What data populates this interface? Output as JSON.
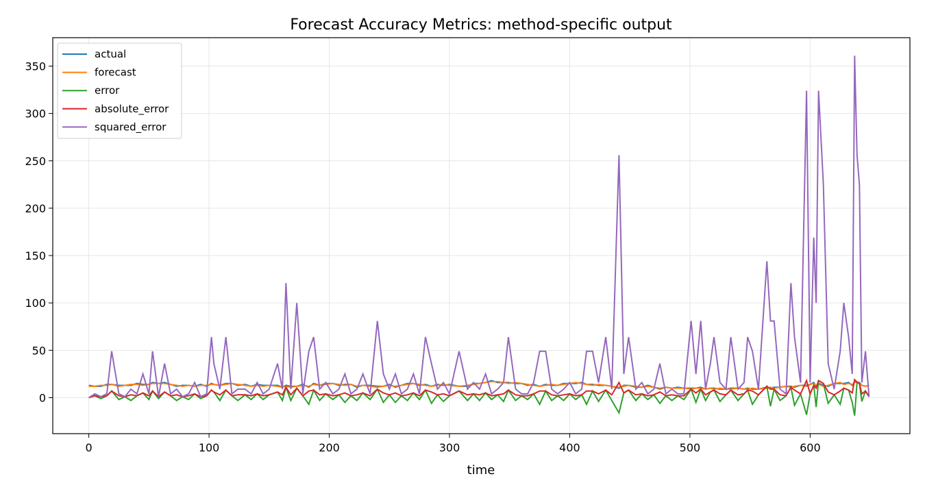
{
  "chart_data": {
    "type": "line",
    "title": "Forecast Accuracy Metrics: method-specific output",
    "x_label": "time",
    "x": [
      0,
      5,
      10,
      15,
      19,
      25,
      30,
      35,
      40,
      45,
      50,
      53,
      58,
      63,
      68,
      73,
      78,
      83,
      88,
      93,
      98,
      102,
      104,
      109,
      114,
      119,
      124,
      130,
      135,
      140,
      145,
      150,
      157,
      161,
      164,
      168,
      173,
      178,
      183,
      187,
      192,
      197,
      203,
      208,
      213,
      218,
      223,
      228,
      234,
      240,
      245,
      250,
      255,
      260,
      265,
      270,
      275,
      280,
      285,
      290,
      295,
      300,
      308,
      315,
      320,
      325,
      330,
      335,
      340,
      345,
      349,
      355,
      360,
      365,
      370,
      375,
      380,
      385,
      390,
      395,
      400,
      405,
      410,
      414,
      419,
      424,
      430,
      435,
      441,
      445,
      449,
      455,
      460,
      465,
      470,
      475,
      480,
      485,
      490,
      495,
      501,
      505,
      509,
      513,
      517,
      520,
      525,
      530,
      534,
      540,
      545,
      548,
      552,
      557,
      564,
      567,
      570,
      575,
      580,
      584,
      587,
      592,
      597,
      600,
      603,
      605,
      607,
      611,
      615,
      620,
      625,
      628,
      632,
      635,
      637,
      639,
      641,
      643,
      646,
      649
    ],
    "series": [
      {
        "name": "actual",
        "color": "#1f77b4",
        "values": [
          13,
          12,
          12,
          14,
          14,
          13,
          13,
          13,
          15,
          14,
          14,
          16,
          15,
          16,
          14,
          12,
          13,
          13,
          12,
          14,
          12,
          15,
          14,
          13,
          15,
          15,
          13,
          14,
          12,
          14,
          13,
          13,
          13,
          11,
          13,
          12,
          12,
          14,
          11,
          15,
          13,
          15,
          15,
          13,
          14,
          14,
          11,
          13,
          13,
          12,
          12,
          14,
          11,
          13,
          15,
          15,
          13,
          14,
          12,
          14,
          13,
          14,
          12,
          12,
          15,
          15,
          16,
          18,
          16,
          16,
          16,
          15,
          15,
          13,
          14,
          12,
          14,
          13,
          13,
          15,
          15,
          15,
          16,
          14,
          14,
          13,
          13,
          12,
          10,
          13,
          13,
          11,
          11,
          13,
          11,
          9,
          11,
          10,
          11,
          10,
          10,
          10,
          11,
          9,
          10,
          10,
          9,
          9,
          10,
          10,
          9,
          10,
          9,
          9,
          11,
          10,
          11,
          11,
          12,
          12,
          11,
          13,
          13,
          14,
          16,
          12,
          15,
          13,
          12,
          15,
          15,
          15,
          16,
          13,
          17,
          16,
          16,
          13,
          12,
          13
        ]
      },
      {
        "name": "forecast",
        "color": "#ff7f0e",
        "values": [
          12,
          12,
          13,
          13,
          14,
          12,
          13,
          14,
          14,
          13,
          14,
          15,
          15,
          15,
          14,
          13,
          12,
          13,
          12,
          13,
          13,
          14,
          14,
          13,
          14,
          15,
          14,
          13,
          12,
          13,
          12,
          13,
          12,
          11,
          12,
          11,
          12,
          13,
          12,
          14,
          13,
          14,
          15,
          14,
          13,
          14,
          12,
          13,
          12,
          11,
          12,
          13,
          12,
          13,
          14,
          15,
          14,
          13,
          12,
          13,
          14,
          13,
          12,
          13,
          14,
          15,
          16,
          17,
          17,
          16,
          15,
          16,
          15,
          14,
          13,
          12,
          13,
          14,
          13,
          14,
          15,
          16,
          15,
          14,
          13,
          14,
          13,
          12,
          11,
          12,
          13,
          12,
          11,
          12,
          11,
          10,
          11,
          10,
          10,
          10,
          9,
          10,
          10,
          9,
          10,
          9,
          10,
          9,
          9,
          10,
          9,
          9,
          10,
          9,
          10,
          11,
          10,
          11,
          12,
          11,
          12,
          13,
          12,
          14,
          15,
          13,
          14,
          12,
          13,
          15,
          16,
          14,
          15,
          14,
          16,
          17,
          15,
          13,
          12,
          13
        ]
      },
      {
        "name": "error",
        "color": "#2ca02c",
        "values": [
          0,
          2,
          -1,
          2,
          7,
          -2,
          1,
          -3,
          2,
          5,
          -2,
          7,
          -1,
          6,
          2,
          -3,
          1,
          -2,
          4,
          -1,
          2,
          8,
          6,
          -3,
          8,
          2,
          -3,
          3,
          -2,
          4,
          -2,
          3,
          6,
          -3,
          11,
          -3,
          10,
          2,
          -7,
          8,
          -3,
          4,
          -2,
          3,
          -5,
          2,
          -3,
          5,
          -2,
          9,
          -5,
          3,
          -5,
          2,
          -3,
          5,
          -2,
          8,
          -6,
          3,
          -4,
          2,
          7,
          -3,
          4,
          -3,
          5,
          -2,
          3,
          -4,
          8,
          -3,
          2,
          -2,
          4,
          -7,
          7,
          -3,
          2,
          -3,
          4,
          -2,
          3,
          -7,
          7,
          -4,
          8,
          -3,
          -16,
          5,
          8,
          -3,
          4,
          -2,
          3,
          -6,
          2,
          -3,
          2,
          -2,
          9,
          -5,
          9,
          -3,
          6,
          8,
          -4,
          3,
          8,
          -3,
          4,
          8,
          -7,
          3,
          12,
          -9,
          9,
          -3,
          2,
          11,
          -8,
          4,
          -18,
          4,
          13,
          -10,
          18,
          15,
          -6,
          3,
          -7,
          10,
          8,
          -5,
          -19,
          16,
          15,
          -4,
          7,
          1
        ]
      },
      {
        "name": "absolute_error",
        "color": "#d62728",
        "values": [
          0,
          2,
          1,
          2,
          7,
          2,
          1,
          3,
          2,
          5,
          2,
          7,
          1,
          6,
          2,
          3,
          1,
          2,
          4,
          1,
          2,
          8,
          6,
          3,
          8,
          2,
          3,
          3,
          2,
          4,
          2,
          3,
          6,
          3,
          11,
          3,
          10,
          2,
          7,
          8,
          3,
          4,
          2,
          3,
          5,
          2,
          3,
          5,
          2,
          9,
          5,
          3,
          5,
          2,
          3,
          5,
          2,
          8,
          6,
          3,
          4,
          2,
          7,
          3,
          4,
          3,
          5,
          2,
          3,
          4,
          8,
          3,
          2,
          2,
          4,
          7,
          7,
          3,
          2,
          3,
          4,
          2,
          3,
          7,
          7,
          4,
          8,
          3,
          16,
          5,
          8,
          3,
          4,
          2,
          3,
          6,
          2,
          3,
          2,
          2,
          9,
          5,
          9,
          3,
          6,
          8,
          4,
          3,
          8,
          3,
          4,
          8,
          7,
          3,
          12,
          9,
          9,
          3,
          2,
          11,
          8,
          4,
          18,
          4,
          13,
          10,
          18,
          15,
          6,
          3,
          7,
          10,
          8,
          5,
          19,
          16,
          15,
          4,
          7,
          1
        ]
      },
      {
        "name": "squared_error",
        "color": "#9467bd",
        "values": [
          0,
          4,
          1,
          4,
          49,
          4,
          1,
          9,
          4,
          25,
          4,
          49,
          1,
          36,
          4,
          9,
          1,
          4,
          16,
          1,
          4,
          64,
          36,
          9,
          64,
          4,
          9,
          9,
          4,
          16,
          4,
          9,
          36,
          9,
          121,
          9,
          100,
          4,
          49,
          64,
          9,
          16,
          4,
          9,
          25,
          4,
          9,
          25,
          4,
          81,
          25,
          9,
          25,
          4,
          9,
          25,
          4,
          64,
          36,
          9,
          16,
          4,
          49,
          9,
          16,
          9,
          25,
          4,
          9,
          16,
          64,
          9,
          4,
          4,
          16,
          49,
          49,
          9,
          4,
          9,
          16,
          4,
          9,
          49,
          49,
          16,
          64,
          9,
          256,
          25,
          64,
          9,
          16,
          4,
          9,
          36,
          4,
          9,
          4,
          4,
          81,
          25,
          81,
          9,
          36,
          64,
          16,
          9,
          64,
          9,
          16,
          64,
          49,
          9,
          144,
          81,
          81,
          9,
          4,
          121,
          64,
          16,
          324,
          16,
          169,
          100,
          324,
          225,
          36,
          9,
          49,
          100,
          64,
          25,
          361,
          256,
          225,
          16,
          49,
          1
        ]
      }
    ],
    "xlim": [
      -30,
      683
    ],
    "ylim": [
      -38,
      380
    ],
    "xticks": [
      0,
      100,
      200,
      300,
      400,
      500,
      600
    ],
    "yticks": [
      0,
      50,
      100,
      150,
      200,
      250,
      300,
      350
    ],
    "grid": true,
    "legend": "upper left"
  }
}
